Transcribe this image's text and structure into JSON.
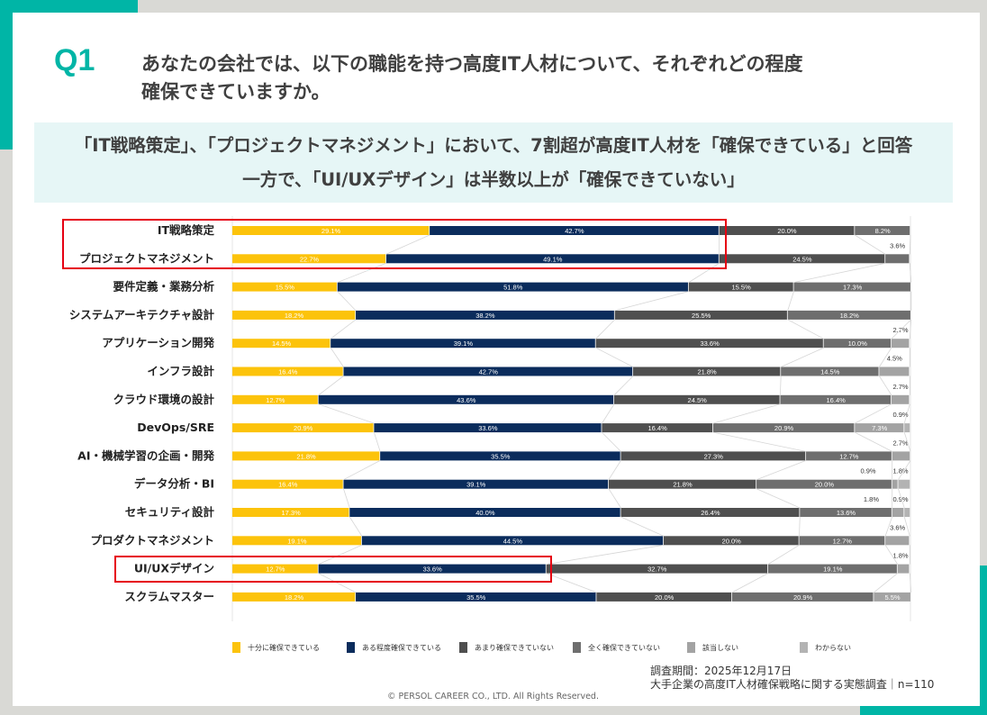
{
  "header": {
    "q_label": "Q1",
    "title_line1": "あなたの会社では、以下の職能を持つ高度IT人材について、それぞれどの程度",
    "title_line2": "確保できていますか。"
  },
  "summary": {
    "line1": "「IT戦略策定」、「プロジェクトマネジメント」において、7割超が高度IT人材を「確保できている」と回答",
    "line2": "一方で、「UI/UXデザイン」は半数以上が「確保できていない」"
  },
  "footer": {
    "survey_period": "調査期間：2025年12月17日",
    "survey_name": "大手企業の高度IT人材確保戦略に関する実態調査｜n=110",
    "copyright": "© PERSOL CAREER CO., LTD. All Rights Reserved."
  },
  "chart_data": {
    "type": "bar",
    "orientation": "horizontal-stacked-100",
    "unit": "%",
    "categories": [
      "IT戦略策定",
      "プロジェクトマネジメント",
      "要件定義・業務分析",
      "システムアーキテクチャ設計",
      "アプリケーション開発",
      "インフラ設計",
      "クラウド環境の設計",
      "DevOps/SRE",
      "AI・機械学習の企画・開発",
      "データ分析・BI",
      "セキュリティ設計",
      "プロダクトマネジメント",
      "UI/UXデザイン",
      "スクラムマスター"
    ],
    "series": [
      {
        "name": "十分に確保できている",
        "color": "#fcc30b",
        "values": [
          29.1,
          22.7,
          15.5,
          18.2,
          14.5,
          16.4,
          12.7,
          20.9,
          21.8,
          16.4,
          17.3,
          19.1,
          12.7,
          18.2
        ]
      },
      {
        "name": "ある程度確保できている",
        "color": "#0b2c5c",
        "values": [
          42.7,
          49.1,
          51.8,
          38.2,
          39.1,
          42.7,
          43.6,
          33.6,
          35.5,
          39.1,
          40.0,
          44.5,
          33.6,
          35.5
        ]
      },
      {
        "name": "あまり確保できていない",
        "color": "#4f4f4f",
        "values": [
          20.0,
          24.5,
          15.5,
          25.5,
          33.6,
          21.8,
          24.5,
          16.4,
          27.3,
          21.8,
          26.4,
          20.0,
          32.7,
          20.0
        ]
      },
      {
        "name": "全く確保できていない",
        "color": "#6e6e6e",
        "values": [
          8.2,
          3.6,
          17.3,
          18.2,
          10.0,
          14.5,
          16.4,
          20.9,
          12.7,
          20.0,
          13.6,
          12.7,
          19.1,
          20.9
        ]
      },
      {
        "name": "該当しない",
        "color": "#a3a3a3",
        "values": [
          0,
          0,
          0,
          0,
          2.7,
          4.5,
          2.7,
          7.3,
          2.7,
          0.9,
          1.8,
          3.6,
          1.8,
          5.5
        ]
      },
      {
        "name": "わからない",
        "color": "#b3b3b3",
        "values": [
          0,
          0,
          0,
          0,
          0,
          0,
          0,
          0.9,
          0,
          1.8,
          0.9,
          0,
          0,
          0
        ]
      }
    ],
    "highlighted": [
      "IT戦略策定",
      "プロジェクトマネジメント",
      "UI/UXデザイン"
    ],
    "legend_position": "bottom",
    "xlim": [
      0,
      100
    ]
  }
}
